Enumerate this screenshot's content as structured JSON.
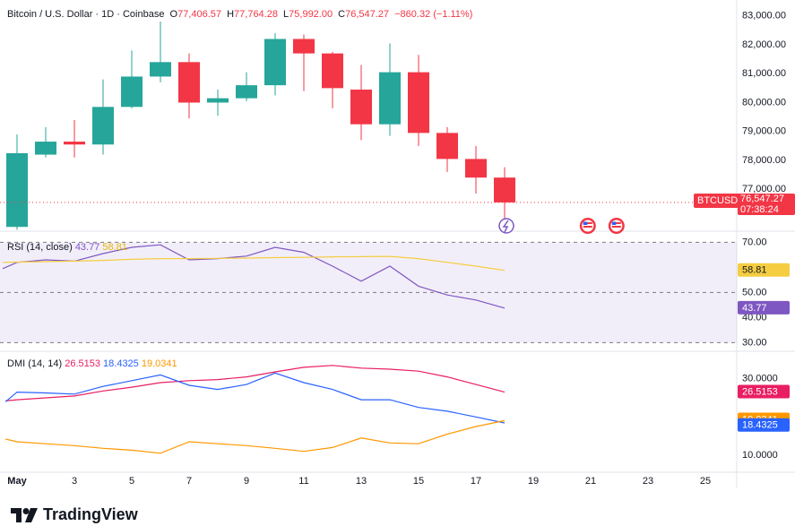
{
  "header": {
    "symbol_desc": "Bitcoin / U.S. Dollar · 1D · Coinbase",
    "o_label": "O",
    "o": "77,406.57",
    "h_label": "H",
    "h": "77,764.28",
    "l_label": "L",
    "l": "75,992.00",
    "c_label": "C",
    "c": "76,547.27",
    "change": "−860.32 (−1.11%)"
  },
  "price_tag": {
    "symbol": "BTCUSD",
    "price": "76,547.27",
    "countdown": "07:38:24"
  },
  "rsi_legend": {
    "name": "RSI (14, close)",
    "v1": "43.77",
    "v2": "58.81"
  },
  "dmi_legend": {
    "name": "DMI (14, 14)",
    "v1": "26.5153",
    "v2": "18.4325",
    "v3": "19.0341"
  },
  "brand": "TradingView",
  "colors": {
    "up": "#26a69a",
    "down": "#f23645",
    "rsi": "#7e57c2",
    "rsi_ma": "#f5cd41",
    "adx": "#e91e63",
    "plus_di": "#2962ff",
    "minus_di": "#ff9800"
  },
  "chart_data": [
    {
      "type": "candlestick",
      "title": "Bitcoin / U.S. Dollar · 1D · Coinbase",
      "x_ticks": [
        "May",
        "3",
        "5",
        "7",
        "9",
        "11",
        "13",
        "15",
        "17",
        "19",
        "21",
        "23",
        "25"
      ],
      "y_ticks": [
        "83,000.00",
        "82,000.00",
        "81,000.00",
        "80,000.00",
        "79,000.00",
        "78,000.00",
        "77,000.00"
      ],
      "ylim": [
        75800,
        83300
      ],
      "candles": [
        {
          "day": 1,
          "o": 75700,
          "h": 78900,
          "l": 75600,
          "c": 78250
        },
        {
          "day": 2,
          "o": 78200,
          "h": 79150,
          "l": 78100,
          "c": 78650
        },
        {
          "day": 3,
          "o": 78650,
          "h": 79400,
          "l": 78100,
          "c": 78550
        },
        {
          "day": 4,
          "o": 78550,
          "h": 80800,
          "l": 78200,
          "c": 79850
        },
        {
          "day": 5,
          "o": 79850,
          "h": 81800,
          "l": 79800,
          "c": 80900
        },
        {
          "day": 6,
          "o": 80900,
          "h": 82800,
          "l": 80700,
          "c": 81400
        },
        {
          "day": 7,
          "o": 81400,
          "h": 81700,
          "l": 79450,
          "c": 80000
        },
        {
          "day": 8,
          "o": 80000,
          "h": 80450,
          "l": 79550,
          "c": 80150
        },
        {
          "day": 9,
          "o": 80150,
          "h": 81050,
          "l": 80050,
          "c": 80600
        },
        {
          "day": 10,
          "o": 80600,
          "h": 82400,
          "l": 80250,
          "c": 82200
        },
        {
          "day": 11,
          "o": 82200,
          "h": 82350,
          "l": 80400,
          "c": 81700
        },
        {
          "day": 12,
          "o": 81700,
          "h": 81750,
          "l": 79800,
          "c": 80500
        },
        {
          "day": 13,
          "o": 80450,
          "h": 81300,
          "l": 78700,
          "c": 79250
        },
        {
          "day": 14,
          "o": 79250,
          "h": 82050,
          "l": 78850,
          "c": 81050
        },
        {
          "day": 15,
          "o": 81050,
          "h": 81650,
          "l": 78500,
          "c": 78950
        },
        {
          "day": 16,
          "o": 78950,
          "h": 79150,
          "l": 77600,
          "c": 78050
        },
        {
          "day": 17,
          "o": 78050,
          "h": 78500,
          "l": 76850,
          "c": 77406.57
        },
        {
          "day": 18,
          "o": 77406.57,
          "h": 77764.28,
          "l": 75992,
          "c": 76547.27
        }
      ],
      "last_price": 76547.27
    },
    {
      "type": "line",
      "title": "RSI (14, close)",
      "y_ticks": [
        "70.00",
        "50.00",
        "40.00",
        "30.00"
      ],
      "ylim": [
        28,
        73
      ],
      "band": [
        30,
        70
      ],
      "x": [
        0.5,
        1,
        2,
        3,
        4,
        5,
        6,
        7,
        8,
        9,
        10,
        11,
        12,
        13,
        14,
        15,
        16,
        17,
        18
      ],
      "series": [
        {
          "name": "RSI",
          "values": [
            59.5,
            62,
            63,
            62.5,
            65.5,
            68,
            69,
            63,
            63.5,
            64.5,
            68,
            66,
            60.5,
            54.5,
            60.5,
            52.5,
            49,
            47,
            43.77
          ]
        },
        {
          "name": "RSI MA",
          "values": [
            62,
            62.1,
            62.3,
            62.5,
            62.8,
            63.2,
            63.5,
            63.5,
            63.6,
            63.7,
            63.9,
            64,
            64.2,
            64.3,
            64.4,
            63.5,
            62,
            60.5,
            58.81
          ]
        }
      ],
      "labels": [
        "58.81",
        "43.77"
      ]
    },
    {
      "type": "line",
      "title": "DMI (14, 14)",
      "y_ticks": [
        "30.0000",
        "10.0000"
      ],
      "ylim": [
        6,
        36.5
      ],
      "x": [
        0,
        1,
        2,
        3,
        4,
        5,
        6,
        7,
        8,
        9,
        10,
        11,
        12,
        13,
        14,
        15,
        16,
        17,
        18
      ],
      "series": [
        {
          "name": "ADX",
          "values": [
            24.2,
            24.5,
            25,
            25.5,
            26.8,
            27.8,
            29,
            29.5,
            29.8,
            30.5,
            31.8,
            33,
            33.5,
            32.8,
            32.5,
            32,
            30.5,
            28.5,
            26.5153
          ]
        },
        {
          "name": "+DI",
          "values": [
            24,
            26.5,
            26.3,
            26,
            28,
            29.5,
            31,
            28.3,
            27.2,
            28.5,
            31.5,
            29,
            27.2,
            24.5,
            24.5,
            22.5,
            21.5,
            20,
            18.4325
          ]
        },
        {
          "name": "-DI",
          "values": [
            14.2,
            13.5,
            13,
            12.5,
            11.8,
            11.3,
            10.5,
            13.5,
            13,
            12.5,
            11.8,
            11,
            12,
            14.5,
            13.2,
            13,
            15.5,
            17.5,
            19.0341
          ]
        }
      ],
      "labels": [
        "26.5153",
        "19.0341",
        "18.4325"
      ]
    }
  ]
}
